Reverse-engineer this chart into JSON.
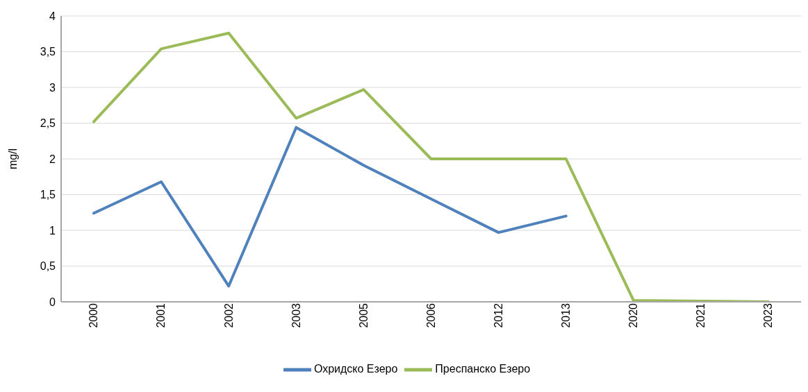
{
  "chart_data": {
    "type": "line",
    "ylabel": "mg/l",
    "categories": [
      "2000",
      "2001",
      "2002",
      "2003",
      "2005",
      "2006",
      "2012",
      "2013",
      "2020",
      "2021",
      "2023"
    ],
    "series": [
      {
        "name": "Охридско Езеро",
        "color": "#4f81bd",
        "values": [
          1.24,
          1.68,
          0.22,
          2.44,
          1.91,
          1.44,
          0.97,
          1.2,
          null,
          null,
          null
        ]
      },
      {
        "name": "Преспанско Езеро",
        "color": "#9bbb59",
        "values": [
          2.52,
          3.54,
          3.76,
          2.57,
          2.97,
          2.0,
          2.0,
          2.0,
          0.02,
          0.01,
          0
        ]
      }
    ],
    "ylim": [
      0,
      4
    ],
    "yticks": [
      {
        "value": 0,
        "label": "0"
      },
      {
        "value": 0.5,
        "label": "0,5"
      },
      {
        "value": 1,
        "label": "1"
      },
      {
        "value": 1.5,
        "label": "1,5"
      },
      {
        "value": 2,
        "label": "2"
      },
      {
        "value": 2.5,
        "label": "2,5"
      },
      {
        "value": 3,
        "label": "3"
      },
      {
        "value": 3.5,
        "label": "3,5"
      },
      {
        "value": 4,
        "label": "4"
      }
    ],
    "grid": "y",
    "legend": "bottom",
    "marker": "none",
    "line_style": "solid"
  }
}
